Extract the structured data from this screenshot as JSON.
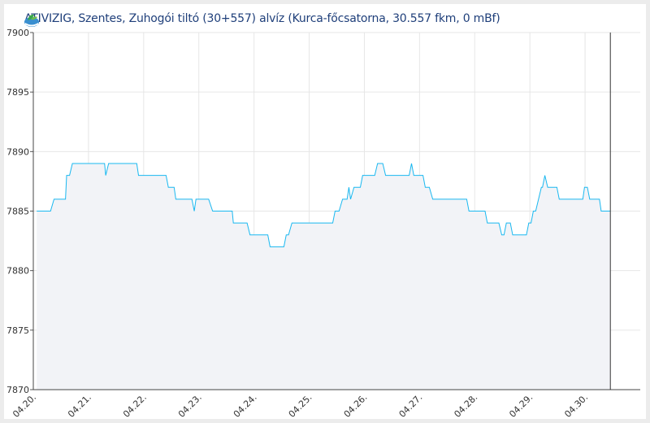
{
  "chart_data": {
    "type": "area",
    "title": "ATIVIZIG, Szentes, Zuhogói tiltó (30+557) alvíz (Kurca-főcsatorna, 30.557 fkm, 0 mBf)",
    "xlabel": "",
    "ylabel": "",
    "xlim": [
      "04.20 00:00",
      "05.01 00:00"
    ],
    "ylim": [
      7870,
      7900
    ],
    "x_ticks": [
      "04.20.",
      "04.21.",
      "04.22.",
      "04.23.",
      "04.24.",
      "04.25.",
      "04.26.",
      "04.27.",
      "04.28.",
      "04.29.",
      "04.30."
    ],
    "y_ticks": [
      7870,
      7875,
      7880,
      7885,
      7890,
      7895,
      7900
    ],
    "grid": true,
    "current_time_marker": "04.30 11:00",
    "colors": {
      "line": "#1ab8f0",
      "fill": "#f2f3f7",
      "grid": "#e6e6e6",
      "title": "#1f3f7a"
    },
    "series": [
      {
        "points": [
          [
            "04.20 01:30",
            7885
          ],
          [
            "04.20 07:30",
            7885
          ],
          [
            "04.20 09:00",
            7886
          ],
          [
            "04.20 14:00",
            7886
          ],
          [
            "04.20 14:30",
            7888
          ],
          [
            "04.20 15:45",
            7888
          ],
          [
            "04.20 17:00",
            7889
          ],
          [
            "04.21 07:00",
            7889
          ],
          [
            "04.21 07:30",
            7888
          ],
          [
            "04.21 08:45",
            7889
          ],
          [
            "04.21 21:00",
            7889
          ],
          [
            "04.21 21:45",
            7888
          ],
          [
            "04.22 09:45",
            7888
          ],
          [
            "04.22 10:45",
            7887
          ],
          [
            "04.22 13:15",
            7887
          ],
          [
            "04.22 14:00",
            7886
          ],
          [
            "04.22 21:00",
            7886
          ],
          [
            "04.22 22:00",
            7885
          ],
          [
            "04.22 22:45",
            7886
          ],
          [
            "04.23 04:15",
            7886
          ],
          [
            "04.23 06:00",
            7885
          ],
          [
            "04.23 14:30",
            7885
          ],
          [
            "04.23 15:00",
            7884
          ],
          [
            "04.23 21:00",
            7884
          ],
          [
            "04.23 22:15",
            7883
          ],
          [
            "04.24 06:00",
            7883
          ],
          [
            "04.24 07:00",
            7882
          ],
          [
            "04.24 13:00",
            7882
          ],
          [
            "04.24 14:00",
            7883
          ],
          [
            "04.24 15:00",
            7883
          ],
          [
            "04.24 16:30",
            7884
          ],
          [
            "04.25 10:15",
            7884
          ],
          [
            "04.25 11:15",
            7885
          ],
          [
            "04.25 13:00",
            7885
          ],
          [
            "04.25 14:30",
            7886
          ],
          [
            "04.25 16:30",
            7886
          ],
          [
            "04.25 17:15",
            7887
          ],
          [
            "04.25 18:00",
            7886
          ],
          [
            "04.25 19:30",
            7887
          ],
          [
            "04.25 22:15",
            7887
          ],
          [
            "04.25 23:15",
            7888
          ],
          [
            "04.26 04:30",
            7888
          ],
          [
            "04.26 05:45",
            7889
          ],
          [
            "04.26 08:00",
            7889
          ],
          [
            "04.26 09:15",
            7888
          ],
          [
            "04.26 19:30",
            7888
          ],
          [
            "04.26 20:30",
            7889
          ],
          [
            "04.26 21:30",
            7888
          ],
          [
            "04.27 01:30",
            7888
          ],
          [
            "04.27 02:30",
            7887
          ],
          [
            "04.27 04:15",
            7887
          ],
          [
            "04.27 05:45",
            7886
          ],
          [
            "04.27 20:30",
            7886
          ],
          [
            "04.27 21:30",
            7885
          ],
          [
            "04.28 04:30",
            7885
          ],
          [
            "04.28 05:30",
            7884
          ],
          [
            "04.28 10:30",
            7884
          ],
          [
            "04.28 11:45",
            7883
          ],
          [
            "04.28 12:45",
            7883
          ],
          [
            "04.28 13:45",
            7884
          ],
          [
            "04.28 15:30",
            7884
          ],
          [
            "04.28 16:30",
            7883
          ],
          [
            "04.28 22:30",
            7883
          ],
          [
            "04.28 23:30",
            7884
          ],
          [
            "04.29 00:30",
            7884
          ],
          [
            "04.29 01:30",
            7885
          ],
          [
            "04.29 02:30",
            7885
          ],
          [
            "04.29 05:00",
            7887
          ],
          [
            "04.29 05:30",
            7887
          ],
          [
            "04.29 06:30",
            7888
          ],
          [
            "04.29 07:45",
            7887
          ],
          [
            "04.29 11:45",
            7887
          ],
          [
            "04.29 12:45",
            7886
          ],
          [
            "04.29 23:00",
            7886
          ],
          [
            "04.29 23:45",
            7887
          ],
          [
            "04.30 01:00",
            7887
          ],
          [
            "04.30 02:00",
            7886
          ],
          [
            "04.30 06:15",
            7886
          ],
          [
            "04.30 07:00",
            7885
          ],
          [
            "04.30 11:00",
            7885
          ]
        ]
      }
    ]
  }
}
